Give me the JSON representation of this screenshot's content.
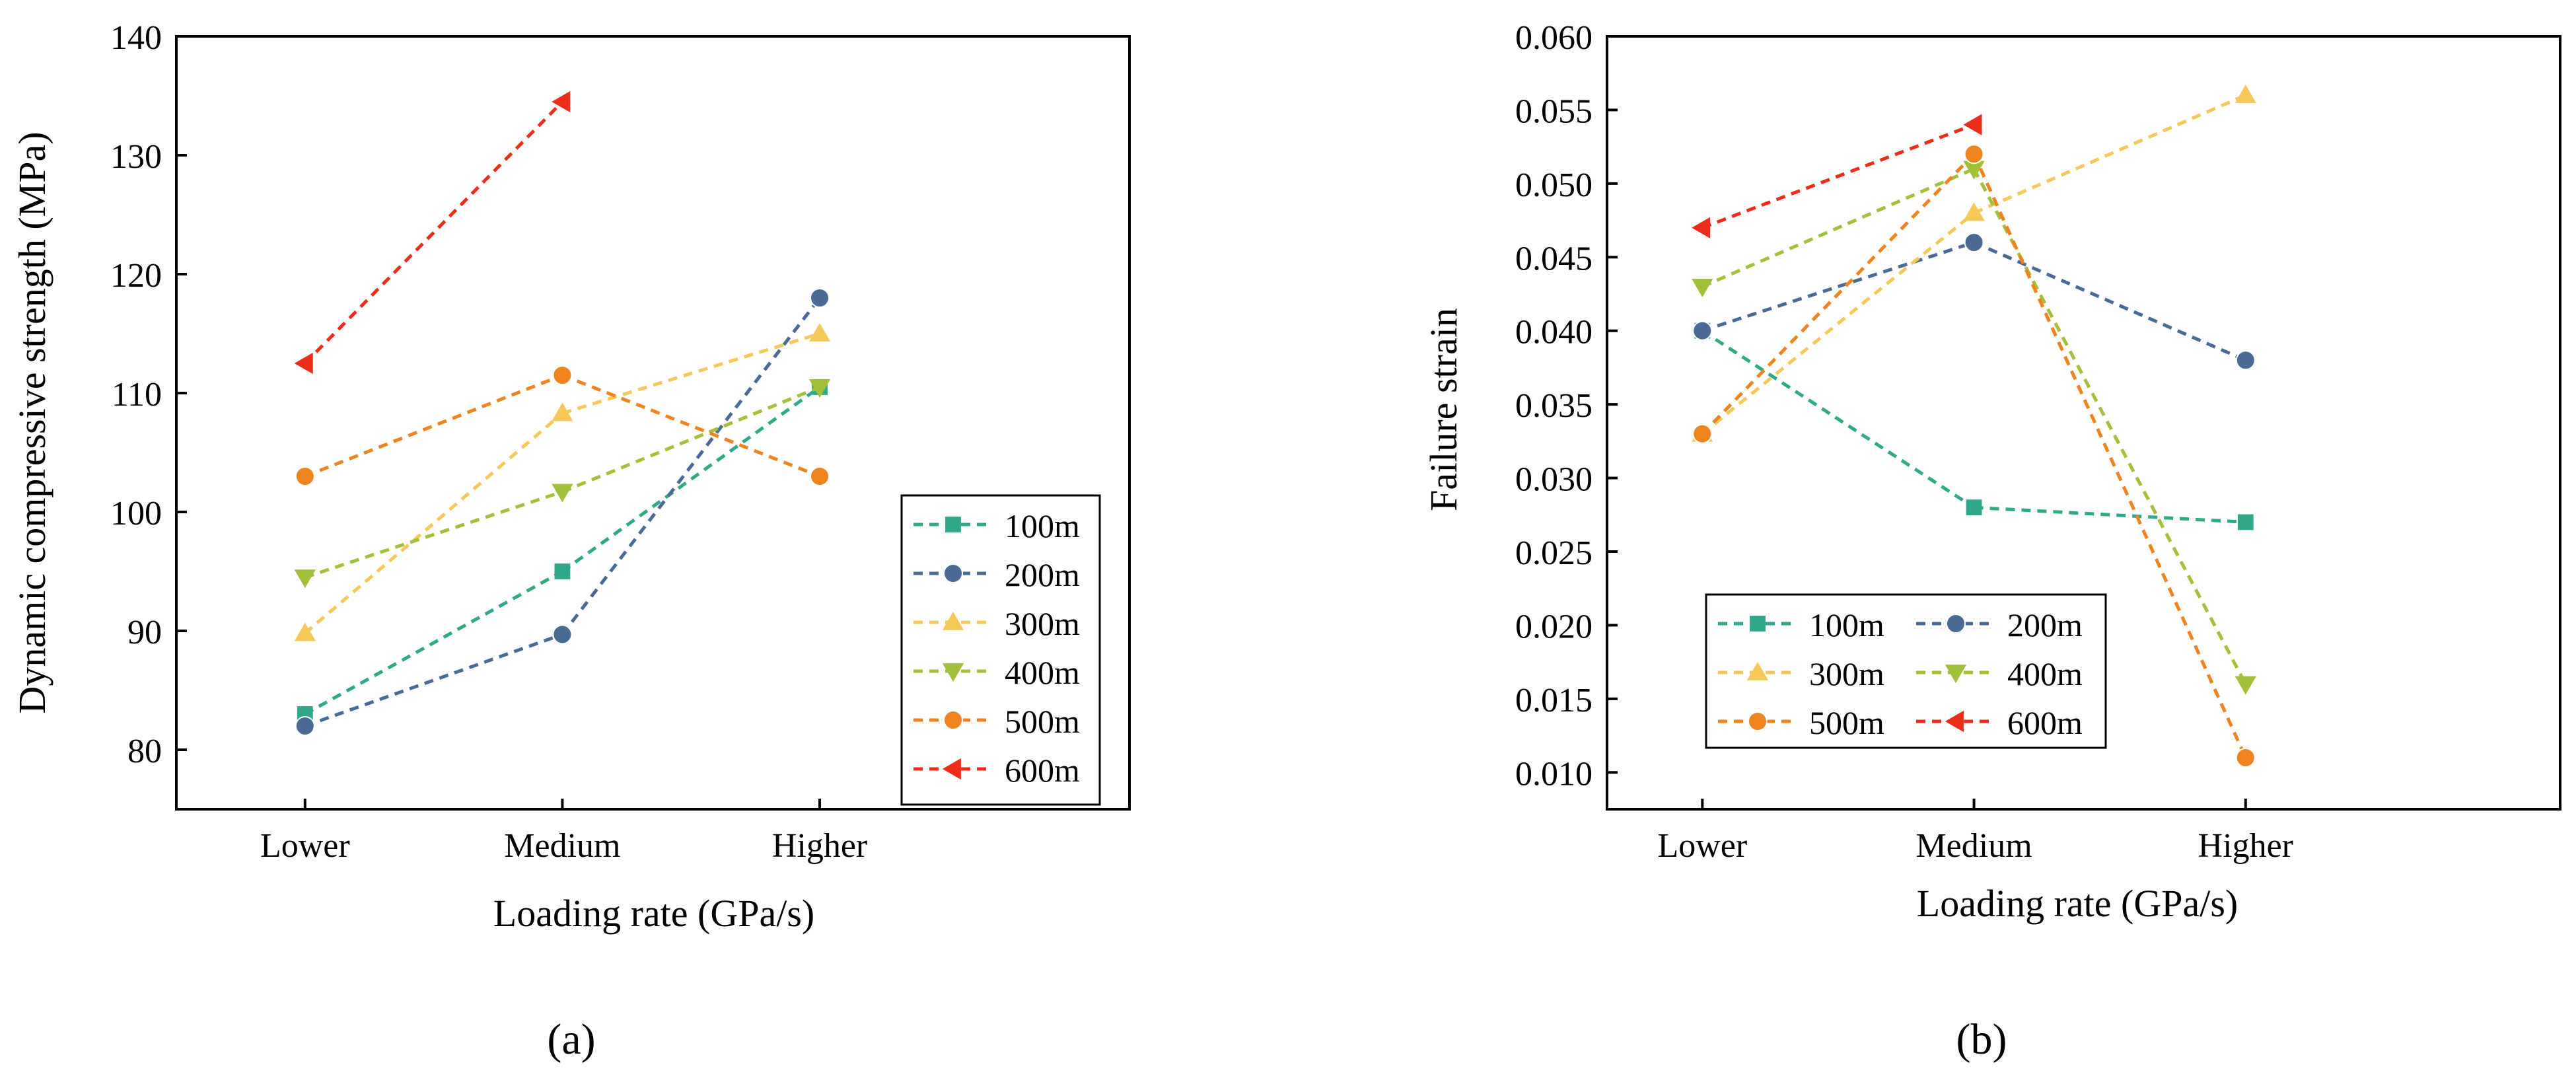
{
  "colors": {
    "s100": "#2fa88a",
    "s200": "#4a6a96",
    "s300": "#f6c85a",
    "s400": "#a2c03a",
    "s500": "#ee8320",
    "s600": "#ee2c1a",
    "axis": "#000000"
  },
  "chart_data": [
    {
      "panel_label": "(a)",
      "type": "line",
      "categories": [
        "Lower",
        "Medium",
        "Higher"
      ],
      "xlabel": "Loading rate (GPa/s)",
      "ylabel": "Dynamic compressive strength (MPa)",
      "ylim": [
        75,
        140
      ],
      "yticks": [
        80,
        90,
        100,
        110,
        120,
        130,
        140
      ],
      "ytick_labels": [
        "80",
        "90",
        "100",
        "110",
        "120",
        "130",
        "140"
      ],
      "legend_position": "bottom-right",
      "series": [
        {
          "name": "100m",
          "marker": "square",
          "values": [
            83,
            95,
            110.5
          ]
        },
        {
          "name": "200m",
          "marker": "circle",
          "values": [
            82,
            89.7,
            118
          ]
        },
        {
          "name": "300m",
          "marker": "triangle-up",
          "values": [
            89.8,
            108.3,
            115
          ]
        },
        {
          "name": "400m",
          "marker": "triangle-down",
          "values": [
            94.5,
            101.7,
            110.5
          ]
        },
        {
          "name": "500m",
          "marker": "circle",
          "values": [
            103,
            111.5,
            103
          ]
        },
        {
          "name": "600m",
          "marker": "triangle-left",
          "values": [
            112.5,
            134.5,
            null
          ]
        }
      ]
    },
    {
      "panel_label": "(b)",
      "type": "line",
      "categories": [
        "Lower",
        "Medium",
        "Higher"
      ],
      "xlabel": "Loading rate (GPa/s)",
      "ylabel": "Failure strain",
      "ylim": [
        0.0075,
        0.06
      ],
      "yticks": [
        0.01,
        0.015,
        0.02,
        0.025,
        0.03,
        0.035,
        0.04,
        0.045,
        0.05,
        0.055,
        0.06
      ],
      "ytick_labels": [
        "0.010",
        "0.015",
        "0.020",
        "0.025",
        "0.030",
        "0.035",
        "0.040",
        "0.045",
        "0.050",
        "0.055",
        "0.060"
      ],
      "legend_position": "bottom-left",
      "series": [
        {
          "name": "100m",
          "marker": "square",
          "values": [
            0.04,
            0.028,
            0.027
          ]
        },
        {
          "name": "200m",
          "marker": "circle",
          "values": [
            0.04,
            0.046,
            0.038
          ]
        },
        {
          "name": "300m",
          "marker": "triangle-up",
          "values": [
            0.033,
            0.048,
            0.056
          ]
        },
        {
          "name": "400m",
          "marker": "triangle-down",
          "values": [
            0.043,
            0.051,
            0.016
          ]
        },
        {
          "name": "500m",
          "marker": "circle",
          "values": [
            0.033,
            0.052,
            0.011
          ]
        },
        {
          "name": "600m",
          "marker": "triangle-left",
          "values": [
            0.047,
            0.054,
            null
          ]
        }
      ]
    }
  ]
}
